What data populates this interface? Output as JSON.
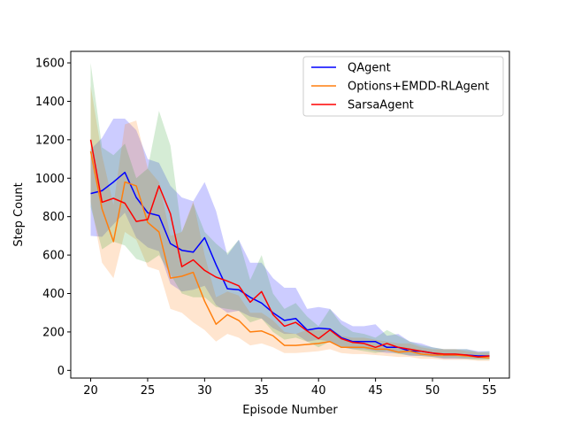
{
  "chart_data": {
    "type": "line",
    "title": "",
    "xlabel": "Episode Number",
    "ylabel": "Step Count",
    "xlim": [
      18.25,
      56.75
    ],
    "ylim": [
      -40,
      1660
    ],
    "xticks": [
      20,
      25,
      30,
      35,
      40,
      45,
      50,
      55
    ],
    "yticks": [
      0,
      200,
      400,
      600,
      800,
      1000,
      1200,
      1400,
      1600
    ],
    "grid": false,
    "legend_position": "upper right",
    "x": [
      20,
      21,
      22,
      23,
      24,
      25,
      26,
      27,
      28,
      29,
      30,
      31,
      32,
      33,
      34,
      35,
      36,
      37,
      38,
      39,
      40,
      41,
      42,
      43,
      44,
      45,
      46,
      47,
      48,
      49,
      50,
      51,
      52,
      53,
      54,
      55
    ],
    "series": [
      {
        "name": "QAgent",
        "color": "#0000ff",
        "band_color": "#0000ff",
        "values": [
          920,
          935,
          980,
          1030,
          900,
          820,
          805,
          660,
          625,
          615,
          690,
          550,
          425,
          420,
          380,
          350,
          300,
          260,
          270,
          210,
          220,
          215,
          170,
          150,
          150,
          150,
          120,
          120,
          100,
          100,
          90,
          80,
          80,
          80,
          75,
          75
        ],
        "lower": [
          700,
          695,
          760,
          820,
          690,
          640,
          620,
          450,
          410,
          420,
          440,
          340,
          300,
          310,
          280,
          270,
          220,
          190,
          190,
          150,
          160,
          150,
          120,
          110,
          110,
          100,
          90,
          90,
          75,
          75,
          70,
          60,
          60,
          60,
          60,
          60
        ],
        "upper": [
          1150,
          1210,
          1310,
          1310,
          1250,
          1100,
          1080,
          960,
          900,
          880,
          980,
          830,
          600,
          680,
          560,
          560,
          480,
          430,
          430,
          320,
          330,
          320,
          260,
          230,
          230,
          240,
          180,
          190,
          150,
          140,
          120,
          110,
          110,
          110,
          100,
          100
        ]
      },
      {
        "name": "Options+EMDD-RLAgent",
        "color": "#ff7f0e",
        "band_color": "#ff7f0e",
        "values": [
          1140,
          840,
          670,
          980,
          960,
          770,
          720,
          480,
          490,
          510,
          360,
          240,
          290,
          260,
          200,
          205,
          180,
          130,
          130,
          135,
          140,
          150,
          120,
          120,
          120,
          110,
          110,
          95,
          100,
          85,
          80,
          80,
          80,
          75,
          70,
          65
        ],
        "lower": [
          880,
          560,
          480,
          720,
          680,
          540,
          520,
          320,
          300,
          250,
          210,
          150,
          190,
          170,
          130,
          140,
          120,
          90,
          90,
          95,
          100,
          110,
          90,
          85,
          85,
          80,
          75,
          70,
          70,
          60,
          60,
          55,
          55,
          55,
          50,
          50
        ],
        "upper": [
          1480,
          1120,
          860,
          1280,
          1300,
          1050,
          980,
          700,
          720,
          880,
          600,
          380,
          410,
          390,
          300,
          300,
          260,
          200,
          190,
          210,
          210,
          220,
          180,
          170,
          170,
          160,
          150,
          140,
          140,
          120,
          110,
          110,
          110,
          100,
          95,
          90
        ]
      },
      {
        "name": "SarsaAgent",
        "color": "#ff0000",
        "band_color": "#2ca02c",
        "values": [
          1200,
          875,
          895,
          870,
          775,
          785,
          960,
          815,
          540,
          575,
          520,
          485,
          465,
          440,
          355,
          410,
          290,
          230,
          250,
          205,
          165,
          210,
          165,
          145,
          140,
          120,
          140,
          120,
          110,
          100,
          90,
          85,
          85,
          80,
          70,
          75
        ],
        "lower": [
          850,
          630,
          670,
          650,
          580,
          560,
          600,
          500,
          400,
          380,
          380,
          330,
          320,
          310,
          250,
          270,
          200,
          160,
          170,
          150,
          120,
          150,
          120,
          110,
          100,
          90,
          100,
          85,
          80,
          75,
          70,
          65,
          65,
          60,
          55,
          55
        ],
        "upper": [
          1600,
          1160,
          1120,
          1180,
          1000,
          1050,
          1350,
          1170,
          720,
          870,
          720,
          660,
          610,
          680,
          470,
          600,
          400,
          320,
          350,
          280,
          230,
          320,
          240,
          200,
          190,
          170,
          210,
          180,
          150,
          130,
          120,
          110,
          110,
          110,
          95,
          100
        ]
      }
    ]
  }
}
